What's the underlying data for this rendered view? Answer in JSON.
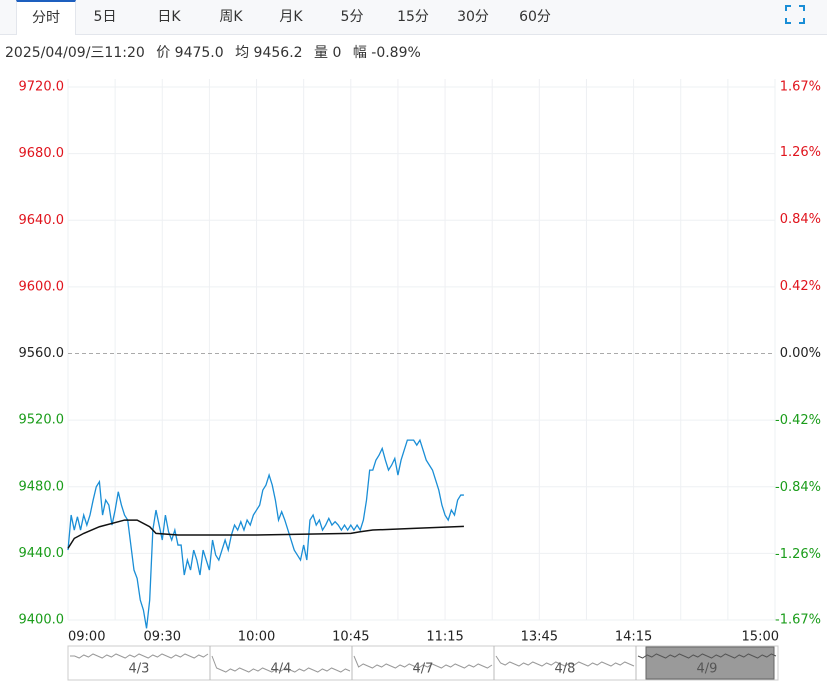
{
  "tabs": [
    "分时",
    "5日",
    "日K",
    "周K",
    "月K",
    "5分",
    "15分",
    "30分",
    "60分"
  ],
  "info": {
    "time": "2025/04/09/三11:20",
    "price": "价 9475.0",
    "avg": "均 9456.2",
    "volume": "量 0",
    "change": "幅 -0.89%"
  },
  "chart_data": {
    "type": "line",
    "baseline": 9560,
    "xlim": [
      0,
      225
    ],
    "xticks": [
      {
        "value": 0,
        "label": "09:00"
      },
      {
        "value": 30,
        "label": "09:30"
      },
      {
        "value": 60,
        "label": "10:00"
      },
      {
        "value": 90,
        "label": "10:45"
      },
      {
        "value": 120,
        "label": "11:15"
      },
      {
        "value": 150,
        "label": "13:45"
      },
      {
        "value": 180,
        "label": "14:15"
      },
      {
        "value": 225,
        "label": "15:00"
      }
    ],
    "xminor": [
      15,
      45,
      75,
      105,
      135,
      165,
      195,
      210
    ],
    "ylim": [
      9400,
      9720
    ],
    "yticks": [
      {
        "value": 9720,
        "label": "9720.0"
      },
      {
        "value": 9680,
        "label": "9680.0"
      },
      {
        "value": 9640,
        "label": "9640.0"
      },
      {
        "value": 9600,
        "label": "9600.0"
      },
      {
        "value": 9560,
        "label": "9560.0"
      },
      {
        "value": 9520,
        "label": "9520.0"
      },
      {
        "value": 9480,
        "label": "9480.0"
      },
      {
        "value": 9440,
        "label": "9440.0"
      },
      {
        "value": 9400,
        "label": "9400.0"
      }
    ],
    "y2lim": [
      -1.67,
      1.67
    ],
    "y2ticks": [
      {
        "value": 1.67,
        "label": "1.67%"
      },
      {
        "value": 1.26,
        "label": "1.26%"
      },
      {
        "value": 0.84,
        "label": "0.84%"
      },
      {
        "value": 0.42,
        "label": "0.42%"
      },
      {
        "value": 0,
        "label": "0.00%"
      },
      {
        "value": -0.42,
        "label": "-0.42%"
      },
      {
        "value": -0.84,
        "label": "-0.84%"
      },
      {
        "value": -1.26,
        "label": "-1.26%"
      },
      {
        "value": -1.67,
        "label": "-1.67%"
      }
    ],
    "grid": true,
    "series": [
      {
        "color": "#1a8ed6",
        "x": [
          0,
          1,
          2,
          3,
          4,
          5,
          6,
          7,
          8,
          9,
          10,
          11,
          12,
          13,
          14,
          15,
          16,
          17,
          18,
          19,
          20,
          21,
          22,
          23,
          24,
          25,
          26,
          27,
          28,
          29,
          30,
          31,
          32,
          33,
          34,
          35,
          36,
          37,
          38,
          39,
          40,
          41,
          42,
          43,
          44,
          45,
          46,
          47,
          48,
          49,
          50,
          51,
          52,
          53,
          54,
          55,
          56,
          57,
          58,
          59,
          60,
          61,
          62,
          63,
          64,
          65,
          66,
          67,
          68,
          69,
          70,
          71,
          72,
          73,
          74,
          75,
          76,
          77,
          78,
          79,
          80,
          81,
          82,
          83,
          84,
          85,
          86,
          87,
          88,
          89,
          90,
          91,
          92,
          93,
          94,
          95,
          96,
          97,
          98,
          99,
          100,
          101,
          102,
          103,
          104,
          105,
          106,
          107,
          108,
          109,
          110,
          111,
          112,
          113,
          114,
          115,
          116,
          117,
          118,
          119,
          120,
          121,
          122,
          123,
          124,
          125,
          126
        ],
        "values": [
          9442,
          9463,
          9454,
          9462,
          9454,
          9463,
          9457,
          9463,
          9472,
          9480,
          9483,
          9463,
          9472,
          9469,
          9457,
          9466,
          9477,
          9469,
          9463,
          9460,
          9445,
          9430,
          9425,
          9412,
          9406,
          9395,
          9412,
          9454,
          9466,
          9457,
          9448,
          9463,
          9453,
          9448,
          9454,
          9445,
          9445,
          9427,
          9436,
          9430,
          9442,
          9436,
          9427,
          9442,
          9436,
          9430,
          9448,
          9439,
          9436,
          9442,
          9448,
          9442,
          9451,
          9457,
          9454,
          9459,
          9454,
          9460,
          9457,
          9463,
          9466,
          9469,
          9478,
          9481,
          9487,
          9481,
          9472,
          9460,
          9465,
          9460,
          9454,
          9448,
          9442,
          9439,
          9436,
          9445,
          9436,
          9460,
          9463,
          9457,
          9460,
          9454,
          9457,
          9461,
          9457,
          9459,
          9457,
          9454,
          9457,
          9454,
          9457,
          9454,
          9457,
          9454,
          9460,
          9472,
          9490,
          9490,
          9496,
          9499,
          9503,
          9496,
          9490,
          9493,
          9497,
          9487,
          9496,
          9502,
          9508,
          9508,
          9508,
          9505,
          9508,
          9502,
          9496,
          9493,
          9490,
          9484,
          9478,
          9469,
          9463,
          9460,
          9466,
          9463,
          9472,
          9475,
          9475
        ]
      },
      {
        "color": "#111111",
        "x": [
          0,
          2,
          5,
          10,
          18,
          22,
          26,
          28,
          35,
          60,
          90,
          93,
          97,
          110,
          126
        ],
        "values": [
          9443,
          9449,
          9452,
          9456,
          9460,
          9460,
          9456,
          9452,
          9451,
          9451,
          9452,
          9453,
          9454,
          9455,
          9456.2
        ]
      }
    ]
  },
  "navigator": {
    "dates": [
      "4/3",
      "4/4",
      "4/7",
      "4/8",
      "4/9"
    ]
  }
}
